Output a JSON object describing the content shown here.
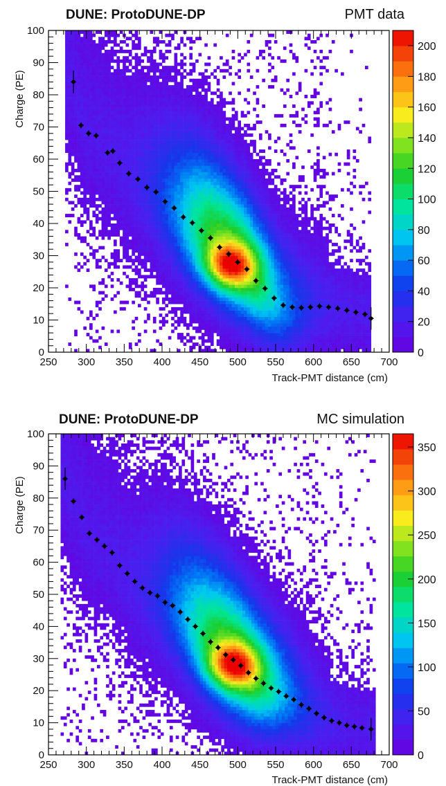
{
  "chart_data": [
    {
      "type": "heatmap",
      "title": "DUNE: ProtoDUNE-DP",
      "subtitle": "PMT data",
      "xlabel": "Track-PMT distance (cm)",
      "ylabel": "Charge (PE)",
      "xlim": [
        250,
        700
      ],
      "ylim": [
        0,
        100
      ],
      "x_ticks": [
        "250",
        "300",
        "350",
        "400",
        "450",
        "500",
        "550",
        "600",
        "650",
        "700"
      ],
      "y_ticks": [
        "0",
        "10",
        "20",
        "30",
        "40",
        "50",
        "60",
        "70",
        "80",
        "90",
        "100"
      ],
      "colorbar_range": [
        0,
        210
      ],
      "colorbar_ticks": [
        "0",
        "20",
        "40",
        "60",
        "80",
        "100",
        "120",
        "140",
        "160",
        "180",
        "200"
      ],
      "heat_core": {
        "x": 490,
        "y": 27,
        "peak": 205
      },
      "mean_profile": {
        "x": [
          283,
          293,
          303,
          313,
          328,
          335,
          344,
          356,
          368,
          380,
          392,
          404,
          416,
          428,
          440,
          452,
          464,
          476,
          488,
          500,
          512,
          524,
          536,
          548,
          560,
          572,
          584,
          596,
          608,
          620,
          632,
          644,
          656,
          668,
          676
        ],
        "y": [
          84,
          70.5,
          68,
          67.3,
          62,
          62.5,
          58.8,
          55.5,
          53.8,
          51.2,
          49.8,
          46.8,
          44.8,
          42,
          40.2,
          37.8,
          35.5,
          32.6,
          30.5,
          28,
          25.8,
          22.2,
          19.8,
          16.8,
          14.6,
          14,
          13.8,
          14,
          14.3,
          14,
          13.6,
          13,
          12.4,
          11.8,
          10.5
        ]
      }
    },
    {
      "type": "heatmap",
      "title": "DUNE: ProtoDUNE-DP",
      "subtitle": "MC simulation",
      "xlabel": "Track-PMT distance (cm)",
      "ylabel": "Charge (PE)",
      "xlim": [
        250,
        700
      ],
      "ylim": [
        0,
        100
      ],
      "x_ticks": [
        "250",
        "300",
        "350",
        "400",
        "450",
        "500",
        "550",
        "600",
        "650",
        "700"
      ],
      "y_ticks": [
        "0",
        "10",
        "20",
        "30",
        "40",
        "50",
        "60",
        "70",
        "80",
        "90",
        "100"
      ],
      "colorbar_range": [
        0,
        365
      ],
      "colorbar_ticks": [
        "0",
        "50",
        "100",
        "150",
        "200",
        "250",
        "300",
        "350"
      ],
      "heat_core": {
        "x": 495,
        "y": 28,
        "peak": 360
      },
      "mean_profile": {
        "x": [
          272,
          283,
          294,
          304,
          314,
          324,
          334,
          344,
          354,
          364,
          374,
          384,
          394,
          404,
          414,
          424,
          434,
          444,
          454,
          464,
          474,
          484,
          494,
          504,
          514,
          524,
          534,
          544,
          554,
          564,
          574,
          584,
          594,
          604,
          614,
          624,
          634,
          644,
          654,
          664,
          676
        ],
        "y": [
          86,
          79,
          74,
          69,
          67,
          65,
          63,
          59,
          56.5,
          54,
          52,
          50.5,
          49.5,
          47.5,
          46.5,
          44.5,
          42.2,
          40,
          37.8,
          35.2,
          33.4,
          31.2,
          29.6,
          27.8,
          25.6,
          23.8,
          22.3,
          20.8,
          19.7,
          18.3,
          17.2,
          15.6,
          14.4,
          12.9,
          11.6,
          10.6,
          10,
          9.2,
          8.8,
          8.4,
          8
        ]
      }
    }
  ]
}
